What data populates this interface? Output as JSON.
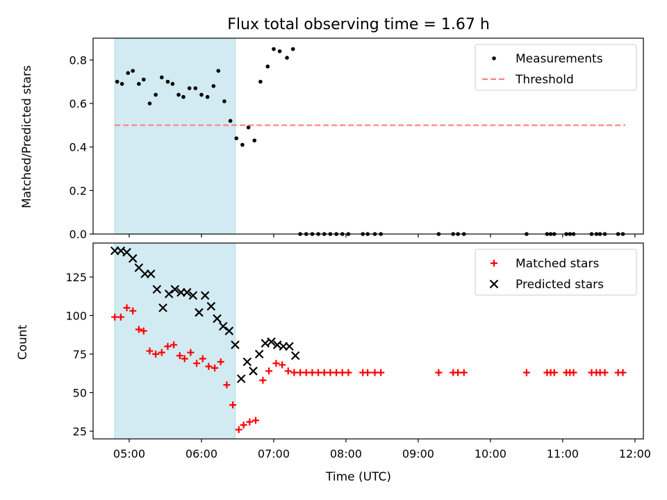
{
  "chart_data": [
    {
      "type": "scatter",
      "title": "Flux total observing time = 1.67 h",
      "xlabel": "",
      "ylabel": "Matched/Predicted stars",
      "xlim": [
        "04:30",
        "12:07"
      ],
      "ylim": [
        0,
        0.9
      ],
      "yticks": [
        0.0,
        0.2,
        0.4,
        0.6,
        0.8
      ],
      "ytick_labels": [
        "0.0",
        "0.2",
        "0.4",
        "0.6",
        "0.8"
      ],
      "xticks": [
        "05:00",
        "06:00",
        "07:00",
        "08:00",
        "09:00",
        "10:00",
        "11:00",
        "12:00"
      ],
      "shaded_span": [
        "04:48",
        "06:28"
      ],
      "shade_color": "#add8e6",
      "legend": {
        "position": "upper right",
        "entries": [
          "Measurements",
          "Threshold"
        ]
      },
      "series": [
        {
          "name": "Measurements",
          "marker": "dot",
          "color": "#000000",
          "points": [
            [
              "04:50",
              0.7
            ],
            [
              "04:54",
              0.69
            ],
            [
              "04:59",
              0.74
            ],
            [
              "05:03",
              0.75
            ],
            [
              "05:08",
              0.69
            ],
            [
              "05:12",
              0.71
            ],
            [
              "05:17",
              0.6
            ],
            [
              "05:22",
              0.64
            ],
            [
              "05:27",
              0.72
            ],
            [
              "05:32",
              0.7
            ],
            [
              "05:36",
              0.69
            ],
            [
              "05:41",
              0.64
            ],
            [
              "05:45",
              0.63
            ],
            [
              "05:50",
              0.67
            ],
            [
              "05:55",
              0.67
            ],
            [
              "06:00",
              0.64
            ],
            [
              "06:05",
              0.63
            ],
            [
              "06:10",
              0.68
            ],
            [
              "06:14",
              0.75
            ],
            [
              "06:19",
              0.61
            ],
            [
              "06:24",
              0.52
            ],
            [
              "06:29",
              0.44
            ],
            [
              "06:34",
              0.41
            ],
            [
              "06:39",
              0.49
            ],
            [
              "06:44",
              0.43
            ],
            [
              "06:49",
              0.7
            ],
            [
              "06:55",
              0.77
            ],
            [
              "07:00",
              0.85
            ],
            [
              "07:05",
              0.84
            ],
            [
              "07:11",
              0.81
            ],
            [
              "07:16",
              0.85
            ],
            [
              "07:22",
              0.0
            ],
            [
              "07:27",
              0.0
            ],
            [
              "07:32",
              0.0
            ],
            [
              "07:37",
              0.0
            ],
            [
              "07:42",
              0.0
            ],
            [
              "07:47",
              0.0
            ],
            [
              "07:52",
              0.0
            ],
            [
              "07:57",
              0.0
            ],
            [
              "08:02",
              0.0
            ],
            [
              "08:14",
              0.0
            ],
            [
              "08:18",
              0.0
            ],
            [
              "08:24",
              0.0
            ],
            [
              "08:29",
              0.0
            ],
            [
              "09:17",
              0.0
            ],
            [
              "09:29",
              0.0
            ],
            [
              "09:33",
              0.0
            ],
            [
              "09:38",
              0.0
            ],
            [
              "10:30",
              0.0
            ],
            [
              "10:47",
              0.0
            ],
            [
              "10:50",
              0.0
            ],
            [
              "10:53",
              0.0
            ],
            [
              "11:03",
              0.0
            ],
            [
              "11:06",
              0.0
            ],
            [
              "11:09",
              0.0
            ],
            [
              "11:24",
              0.0
            ],
            [
              "11:28",
              0.0
            ],
            [
              "11:31",
              0.0
            ],
            [
              "11:35",
              0.0
            ],
            [
              "11:46",
              0.0
            ],
            [
              "11:50",
              0.0
            ]
          ]
        },
        {
          "name": "Threshold",
          "marker": "dashed-line",
          "color": "#ff7f7f",
          "points": [
            [
              "04:48",
              0.5
            ],
            [
              "11:52",
              0.5
            ]
          ]
        }
      ]
    },
    {
      "type": "scatter",
      "title": "",
      "xlabel": "Time (UTC)",
      "ylabel": "Count",
      "xlim": [
        "04:30",
        "12:07"
      ],
      "ylim": [
        20,
        147
      ],
      "yticks": [
        25,
        50,
        75,
        100,
        125
      ],
      "ytick_labels": [
        "25",
        "50",
        "75",
        "100",
        "125"
      ],
      "xticks": [
        "05:00",
        "06:00",
        "07:00",
        "08:00",
        "09:00",
        "10:00",
        "11:00",
        "12:00"
      ],
      "xtick_labels": [
        "05:00",
        "06:00",
        "07:00",
        "08:00",
        "09:00",
        "10:00",
        "11:00",
        "12:00"
      ],
      "shaded_span": [
        "04:48",
        "06:28"
      ],
      "shade_color": "#add8e6",
      "legend": {
        "position": "upper right",
        "entries": [
          "Matched stars",
          "Predicted stars"
        ]
      },
      "series": [
        {
          "name": "Matched stars",
          "marker": "plus",
          "color": "#ff0000",
          "points": [
            [
              "04:48",
              99
            ],
            [
              "04:53",
              99
            ],
            [
              "04:58",
              105
            ],
            [
              "05:03",
              103
            ],
            [
              "05:08",
              91
            ],
            [
              "05:12",
              90
            ],
            [
              "05:17",
              77
            ],
            [
              "05:22",
              75
            ],
            [
              "05:27",
              76
            ],
            [
              "05:32",
              80
            ],
            [
              "05:37",
              81
            ],
            [
              "05:42",
              74
            ],
            [
              "05:46",
              72
            ],
            [
              "05:51",
              76
            ],
            [
              "05:56",
              69
            ],
            [
              "06:01",
              72
            ],
            [
              "06:06",
              67
            ],
            [
              "06:11",
              66
            ],
            [
              "06:16",
              70
            ],
            [
              "06:21",
              55
            ],
            [
              "06:26",
              42
            ],
            [
              "06:31",
              26
            ],
            [
              "06:35",
              29
            ],
            [
              "06:40",
              31
            ],
            [
              "06:45",
              32
            ],
            [
              "06:51",
              58
            ],
            [
              "06:56",
              64
            ],
            [
              "07:02",
              69
            ],
            [
              "07:07",
              68
            ],
            [
              "07:12",
              64
            ],
            [
              "07:17",
              63
            ],
            [
              "07:22",
              63
            ],
            [
              "07:27",
              63
            ],
            [
              "07:32",
              63
            ],
            [
              "07:37",
              63
            ],
            [
              "07:42",
              63
            ],
            [
              "07:47",
              63
            ],
            [
              "07:52",
              63
            ],
            [
              "07:57",
              63
            ],
            [
              "08:02",
              63
            ],
            [
              "08:14",
              63
            ],
            [
              "08:18",
              63
            ],
            [
              "08:24",
              63
            ],
            [
              "08:29",
              63
            ],
            [
              "09:17",
              63
            ],
            [
              "09:29",
              63
            ],
            [
              "09:33",
              63
            ],
            [
              "09:38",
              63
            ],
            [
              "10:30",
              63
            ],
            [
              "10:47",
              63
            ],
            [
              "10:50",
              63
            ],
            [
              "10:53",
              63
            ],
            [
              "11:03",
              63
            ],
            [
              "11:06",
              63
            ],
            [
              "11:09",
              63
            ],
            [
              "11:24",
              63
            ],
            [
              "11:28",
              63
            ],
            [
              "11:31",
              63
            ],
            [
              "11:35",
              63
            ],
            [
              "11:46",
              63
            ],
            [
              "11:50",
              63
            ]
          ]
        },
        {
          "name": "Predicted stars",
          "marker": "x",
          "color": "#000000",
          "points": [
            [
              "04:48",
              142
            ],
            [
              "04:53",
              142
            ],
            [
              "04:58",
              141
            ],
            [
              "05:03",
              137
            ],
            [
              "05:08",
              131
            ],
            [
              "05:13",
              127
            ],
            [
              "05:18",
              127
            ],
            [
              "05:23",
              117
            ],
            [
              "05:28",
              105
            ],
            [
              "05:33",
              114
            ],
            [
              "05:38",
              117
            ],
            [
              "05:43",
              115
            ],
            [
              "05:48",
              115
            ],
            [
              "05:53",
              113
            ],
            [
              "05:58",
              102
            ],
            [
              "06:03",
              113
            ],
            [
              "06:08",
              106
            ],
            [
              "06:13",
              98
            ],
            [
              "06:18",
              93
            ],
            [
              "06:23",
              90
            ],
            [
              "06:28",
              81
            ],
            [
              "06:33",
              59
            ],
            [
              "06:38",
              70
            ],
            [
              "06:43",
              64
            ],
            [
              "06:48",
              75
            ],
            [
              "06:53",
              82
            ],
            [
              "06:58",
              83
            ],
            [
              "07:03",
              81
            ],
            [
              "07:08",
              80
            ],
            [
              "07:13",
              80
            ],
            [
              "07:18",
              74
            ]
          ]
        }
      ]
    }
  ]
}
